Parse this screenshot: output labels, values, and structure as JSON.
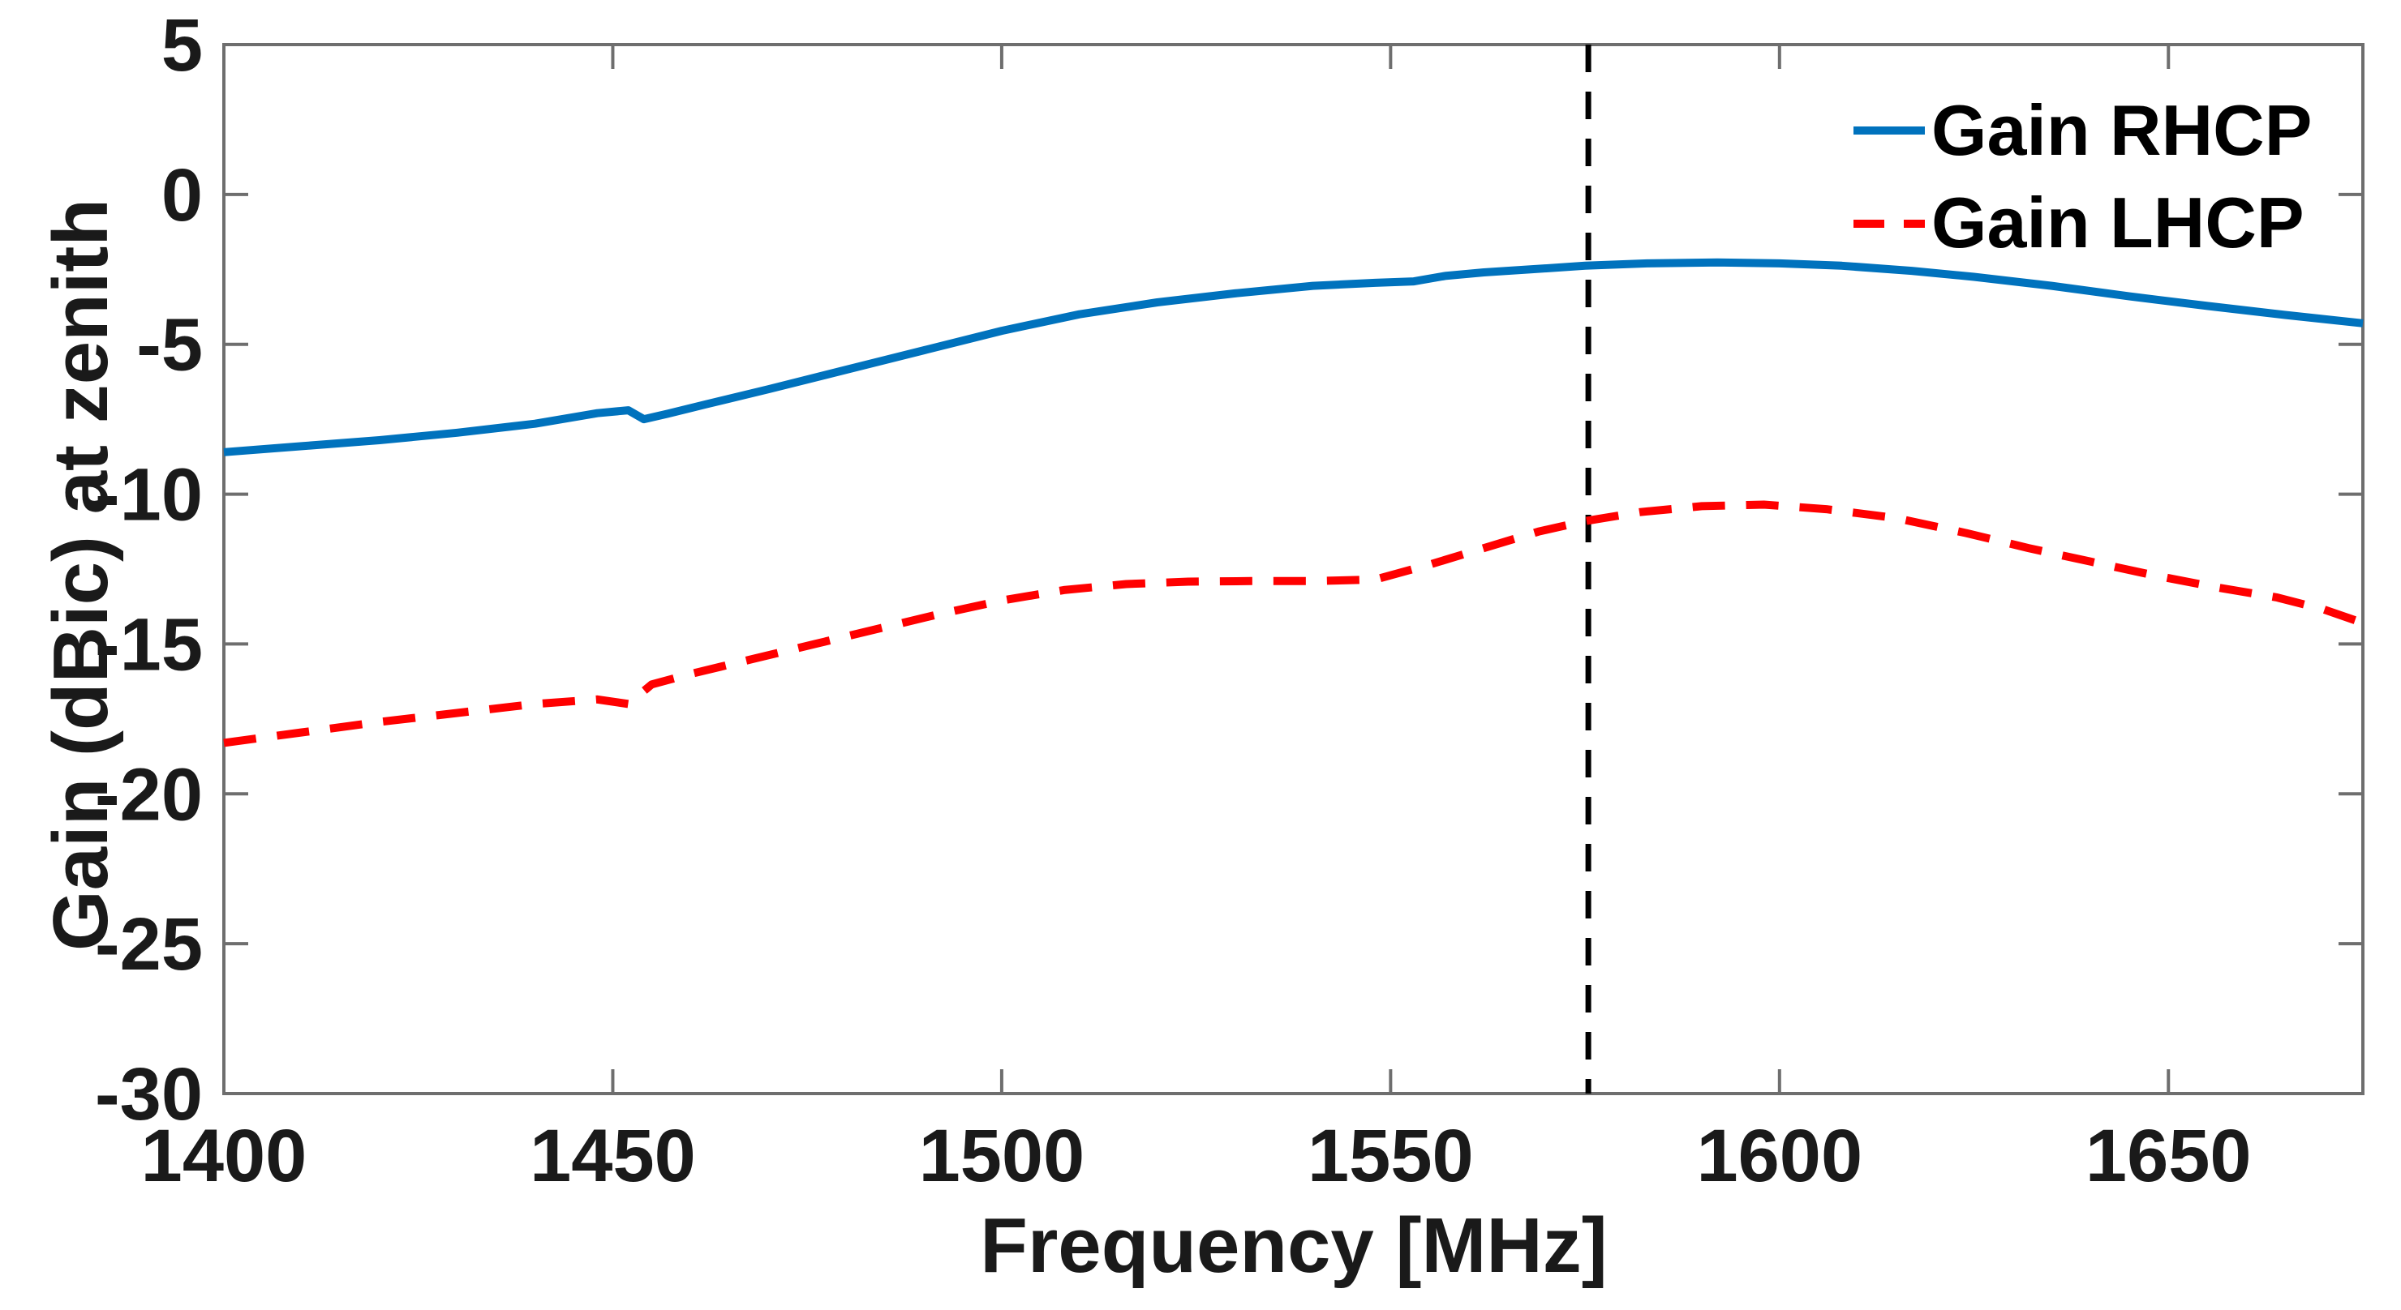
{
  "chart_data": {
    "type": "line",
    "title": "",
    "xlabel": "Frequency [MHz]",
    "ylabel": "Gain (dBic) at zenith",
    "xlim": [
      1400,
      1675
    ],
    "ylim": [
      -30,
      5
    ],
    "xticks": [
      1400,
      1450,
      1500,
      1550,
      1600,
      1650
    ],
    "yticks": [
      5,
      0,
      -5,
      -10,
      -15,
      -20,
      -25,
      -30
    ],
    "grid": false,
    "legend_position": "top-right",
    "axis_color": "#6e6e6e",
    "tick_label_color": "#1a1a1a",
    "series": [
      {
        "name": "Gain RHCP",
        "color": "#0072bd",
        "style": "solid",
        "line_width": 10,
        "x": [
          1400,
          1410,
          1420,
          1430,
          1440,
          1448,
          1452,
          1454,
          1457,
          1462,
          1470,
          1480,
          1490,
          1500,
          1510,
          1520,
          1530,
          1540,
          1548,
          1553,
          1557,
          1562,
          1568,
          1575,
          1583,
          1592,
          1600,
          1608,
          1617,
          1625,
          1635,
          1645,
          1655,
          1665,
          1675
        ],
        "y": [
          -8.6,
          -8.4,
          -8.2,
          -7.95,
          -7.65,
          -7.3,
          -7.2,
          -7.5,
          -7.32,
          -7.0,
          -6.5,
          -5.85,
          -5.2,
          -4.55,
          -4.0,
          -3.6,
          -3.3,
          -3.05,
          -2.95,
          -2.9,
          -2.72,
          -2.6,
          -2.5,
          -2.38,
          -2.3,
          -2.27,
          -2.3,
          -2.38,
          -2.55,
          -2.75,
          -3.05,
          -3.4,
          -3.72,
          -4.02,
          -4.3
        ]
      },
      {
        "name": "Gain LHCP",
        "color": "#ff0000",
        "style": "dashed",
        "line_width": 10,
        "x": [
          1400,
          1410,
          1420,
          1430,
          1440,
          1448,
          1452,
          1455,
          1460,
          1468,
          1476,
          1484,
          1492,
          1500,
          1508,
          1516,
          1524,
          1532,
          1540,
          1548,
          1555,
          1562,
          1569,
          1575,
          1582,
          1590,
          1598,
          1606,
          1615,
          1624,
          1632,
          1640,
          1648,
          1656,
          1664,
          1670,
          1675
        ],
        "y": [
          -18.3,
          -17.95,
          -17.6,
          -17.3,
          -17.0,
          -16.85,
          -17.0,
          -16.35,
          -16.0,
          -15.5,
          -15.0,
          -14.5,
          -14.0,
          -13.55,
          -13.2,
          -13.0,
          -12.92,
          -12.9,
          -12.9,
          -12.85,
          -12.35,
          -11.8,
          -11.25,
          -10.9,
          -10.6,
          -10.4,
          -10.35,
          -10.5,
          -10.8,
          -11.3,
          -11.8,
          -12.25,
          -12.7,
          -13.1,
          -13.45,
          -13.85,
          -14.3
        ]
      }
    ],
    "annotations": [
      {
        "type": "vline",
        "x": 1575.42,
        "color": "#000000",
        "style": "dashed",
        "line_width": 7
      }
    ]
  }
}
